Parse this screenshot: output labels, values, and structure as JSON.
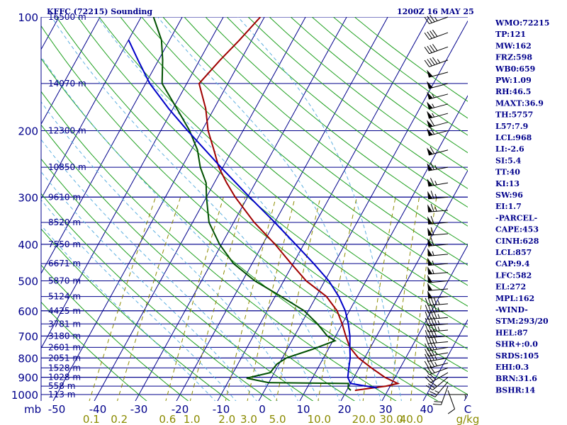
{
  "header": {
    "station_title": "KFFC (72215) Sounding",
    "valid_time": "1200Z 16 MAY 25"
  },
  "colors": {
    "isobar": "#00008b",
    "isotherm": "#00008b",
    "dry_adiabat": "#1fa01f",
    "moist_adiabat": "#5fb0e0",
    "mixing_ratio": "#8b8b00",
    "temperature": "#a00000",
    "dewpoint": "#005000",
    "parcel": "#0000c8",
    "wind_barb": "#000000",
    "text": "#00008b"
  },
  "chart_data": {
    "type": "line",
    "chart_kind": "Skew-T log-P",
    "pressure_axis": {
      "unit": "mb",
      "scale": "log",
      "range": [
        1000,
        100
      ],
      "ticks": [
        100,
        200,
        300,
        400,
        500,
        600,
        700,
        800,
        900,
        1000
      ]
    },
    "temperature_axis": {
      "unit": "C",
      "ticks": [
        -50,
        -40,
        -30,
        -20,
        -10,
        0,
        10,
        20,
        30,
        40
      ]
    },
    "mixing_ratio_axis": {
      "unit": "g/kg",
      "ticks": [
        "0.1",
        "0.2",
        "0.6",
        "1.0",
        "2.0",
        "3.0",
        "5.0",
        "10.0",
        "20.0",
        "30.0",
        "40.0"
      ],
      "values": [
        0.1,
        0.2,
        0.6,
        1.0,
        2.0,
        3.0,
        5.0,
        10.0,
        20.0,
        30.0,
        40.0
      ]
    },
    "height_labels": [
      {
        "p": 100,
        "text": "16500 m"
      },
      {
        "p": 150,
        "text": "14070 m"
      },
      {
        "p": 200,
        "text": "12300 m"
      },
      {
        "p": 250,
        "text": "10850 m"
      },
      {
        "p": 300,
        "text": "9610 m"
      },
      {
        "p": 350,
        "text": "8520 m"
      },
      {
        "p": 400,
        "text": "7550 m"
      },
      {
        "p": 450,
        "text": "6671 m"
      },
      {
        "p": 500,
        "text": "5870 m"
      },
      {
        "p": 550,
        "text": "5124 m"
      },
      {
        "p": 600,
        "text": "4425 m"
      },
      {
        "p": 650,
        "text": "3781 m"
      },
      {
        "p": 700,
        "text": "3180 m"
      },
      {
        "p": 750,
        "text": "2601 m"
      },
      {
        "p": 800,
        "text": "2051 m"
      },
      {
        "p": 850,
        "text": "1528 m"
      },
      {
        "p": 900,
        "text": "1028 m"
      },
      {
        "p": 950,
        "text": "558 m"
      },
      {
        "p": 1000,
        "text": "113 m"
      }
    ],
    "series": [
      {
        "key": "temperature",
        "points": [
          [
            975,
            22.0
          ],
          [
            960,
            26.0
          ],
          [
            950,
            29.0
          ],
          [
            935,
            31.5
          ],
          [
            900,
            27.5
          ],
          [
            850,
            23.0
          ],
          [
            800,
            18.5
          ],
          [
            750,
            15.0
          ],
          [
            700,
            12.5
          ],
          [
            650,
            10.0
          ],
          [
            600,
            7.0
          ],
          [
            550,
            2.5
          ],
          [
            500,
            -4.5
          ],
          [
            450,
            -10.5
          ],
          [
            400,
            -17.0
          ],
          [
            350,
            -25.0
          ],
          [
            300,
            -33.0
          ],
          [
            275,
            -37.0
          ],
          [
            250,
            -41.0
          ],
          [
            225,
            -44.5
          ],
          [
            200,
            -48.5
          ],
          [
            175,
            -52.0
          ],
          [
            150,
            -57.0
          ],
          [
            130,
            -55.0
          ],
          [
            115,
            -53.0
          ],
          [
            100,
            -51.0
          ]
        ]
      },
      {
        "key": "dewpoint",
        "points": [
          [
            975,
            21.0
          ],
          [
            960,
            20.0
          ],
          [
            935,
            19.5
          ],
          [
            930,
            0.0
          ],
          [
            905,
            -6.0
          ],
          [
            875,
            -1.0
          ],
          [
            830,
            -0.5
          ],
          [
            800,
            1.0
          ],
          [
            760,
            6.0
          ],
          [
            720,
            10.5
          ],
          [
            700,
            8.0
          ],
          [
            650,
            4.0
          ],
          [
            600,
            -1.0
          ],
          [
            550,
            -8.5
          ],
          [
            500,
            -17.0
          ],
          [
            450,
            -24.5
          ],
          [
            400,
            -30.5
          ],
          [
            350,
            -36.0
          ],
          [
            300,
            -40.0
          ],
          [
            275,
            -42.0
          ],
          [
            250,
            -45.5
          ],
          [
            225,
            -48.5
          ],
          [
            200,
            -53.0
          ],
          [
            175,
            -59.0
          ],
          [
            150,
            -66.0
          ],
          [
            130,
            -69.0
          ],
          [
            115,
            -72.0
          ],
          [
            100,
            -77.0
          ]
        ]
      },
      {
        "key": "parcel",
        "points": [
          [
            960,
            27.0
          ],
          [
            935,
            20.0
          ],
          [
            900,
            18.5
          ],
          [
            850,
            17.5
          ],
          [
            800,
            16.5
          ],
          [
            750,
            15.0
          ],
          [
            700,
            13.5
          ],
          [
            650,
            11.5
          ],
          [
            600,
            9.0
          ],
          [
            550,
            5.5
          ],
          [
            500,
            1.0
          ],
          [
            450,
            -5.0
          ],
          [
            400,
            -12.0
          ],
          [
            350,
            -20.0
          ],
          [
            300,
            -29.5
          ],
          [
            250,
            -40.5
          ],
          [
            200,
            -53.5
          ],
          [
            175,
            -61.0
          ],
          [
            150,
            -69.0
          ],
          [
            130,
            -75.0
          ],
          [
            115,
            -80.0
          ]
        ]
      }
    ],
    "wind_barbs": [
      {
        "p": 1000,
        "dir": 90,
        "spd": 5
      },
      {
        "p": 975,
        "dir": 160,
        "spd": 10
      },
      {
        "p": 950,
        "dir": 200,
        "spd": 20
      },
      {
        "p": 925,
        "dir": 220,
        "spd": 25
      },
      {
        "p": 900,
        "dir": 230,
        "spd": 30
      },
      {
        "p": 875,
        "dir": 240,
        "spd": 30
      },
      {
        "p": 850,
        "dir": 250,
        "spd": 30
      },
      {
        "p": 825,
        "dir": 255,
        "spd": 35
      },
      {
        "p": 800,
        "dir": 260,
        "spd": 35
      },
      {
        "p": 775,
        "dir": 260,
        "spd": 35
      },
      {
        "p": 750,
        "dir": 260,
        "spd": 40
      },
      {
        "p": 725,
        "dir": 265,
        "spd": 40
      },
      {
        "p": 700,
        "dir": 265,
        "spd": 40
      },
      {
        "p": 675,
        "dir": 265,
        "spd": 45
      },
      {
        "p": 650,
        "dir": 265,
        "spd": 45
      },
      {
        "p": 625,
        "dir": 265,
        "spd": 45
      },
      {
        "p": 600,
        "dir": 265,
        "spd": 45
      },
      {
        "p": 575,
        "dir": 265,
        "spd": 45
      },
      {
        "p": 550,
        "dir": 265,
        "spd": 50
      },
      {
        "p": 525,
        "dir": 265,
        "spd": 50
      },
      {
        "p": 500,
        "dir": 265,
        "spd": 50
      },
      {
        "p": 475,
        "dir": 265,
        "spd": 55
      },
      {
        "p": 450,
        "dir": 265,
        "spd": 55
      },
      {
        "p": 425,
        "dir": 265,
        "spd": 55
      },
      {
        "p": 400,
        "dir": 265,
        "spd": 60
      },
      {
        "p": 375,
        "dir": 265,
        "spd": 60
      },
      {
        "p": 350,
        "dir": 265,
        "spd": 60
      },
      {
        "p": 325,
        "dir": 265,
        "spd": 65
      },
      {
        "p": 300,
        "dir": 265,
        "spd": 65
      },
      {
        "p": 275,
        "dir": 260,
        "spd": 65
      },
      {
        "p": 250,
        "dir": 260,
        "spd": 65
      },
      {
        "p": 225,
        "dir": 255,
        "spd": 60
      },
      {
        "p": 200,
        "dir": 255,
        "spd": 60
      },
      {
        "p": 190,
        "dir": 255,
        "spd": 60
      },
      {
        "p": 180,
        "dir": 255,
        "spd": 55
      },
      {
        "p": 170,
        "dir": 255,
        "spd": 55
      },
      {
        "p": 160,
        "dir": 255,
        "spd": 55
      },
      {
        "p": 150,
        "dir": 255,
        "spd": 50
      },
      {
        "p": 140,
        "dir": 255,
        "spd": 50
      },
      {
        "p": 130,
        "dir": 250,
        "spd": 45
      },
      {
        "p": 120,
        "dir": 250,
        "spd": 40
      },
      {
        "p": 110,
        "dir": 250,
        "spd": 40
      },
      {
        "p": 100,
        "dir": 250,
        "spd": 35
      }
    ]
  },
  "indices": [
    "WMO:72215",
    "TP:121",
    "MW:162",
    "FRZ:598",
    "WB0:659",
    "PW:1.09",
    "RH:46.5",
    "MAXT:36.9",
    "TH:5757",
    "L57:7.9",
    "LCL:968",
    "LI:-2.6",
    "SI:5.4",
    "TT:40",
    "KI:13",
    "SW:96",
    "EI:1.7",
    "-PARCEL-",
    "CAPE:453",
    "CINH:628",
    "LCL:857",
    "CAP:9.4",
    "LFC:582",
    "EL:272",
    "MPL:162",
    "-WIND-",
    "STM:293/20",
    "HEL:87",
    "SHR+:0.0",
    "SRDS:105",
    "EHI:0.3",
    "BRN:31.6",
    "BSHR:14"
  ]
}
